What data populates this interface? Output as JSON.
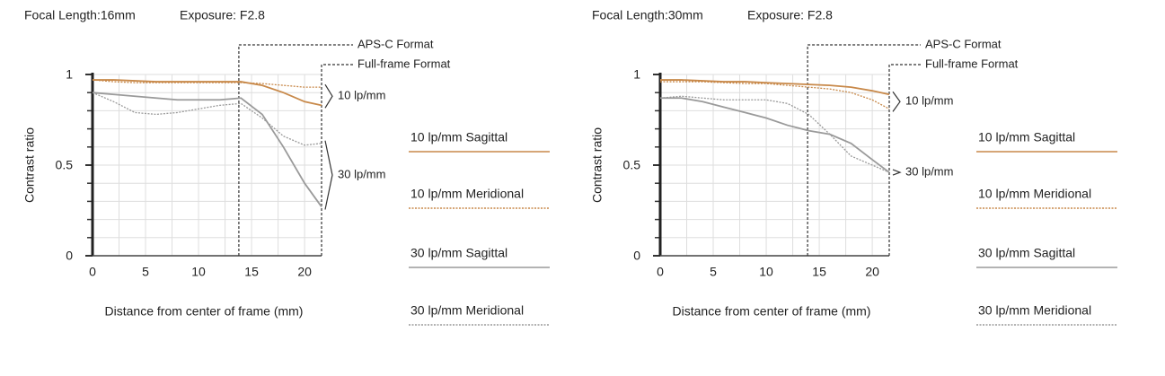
{
  "chart_data": [
    {
      "type": "line",
      "title": "Focal Length:16mm",
      "subtitle": "Exposure: F2.8",
      "x_label": "Distance from center of frame (mm)",
      "y_label": "Contrast ratio",
      "x": [
        0,
        2,
        4,
        6,
        8,
        10,
        12,
        14,
        16,
        18,
        20,
        21.6
      ],
      "xlim": [
        0,
        21.6
      ],
      "xticks": [
        0,
        5,
        10,
        15,
        20
      ],
      "xminorticks": [
        2.5,
        7.5,
        12.5,
        17.5
      ],
      "ylim": [
        0,
        1
      ],
      "yticks": [
        0,
        0.5,
        1
      ],
      "yminorticks": [
        0.1,
        0.2,
        0.3,
        0.4,
        0.6,
        0.7,
        0.8,
        0.9
      ],
      "grid": true,
      "markers": [
        {
          "label": "APS-C Format",
          "x": 13.8
        },
        {
          "label": "Full-frame Format",
          "x": 21.6
        }
      ],
      "bracket_labels": [
        "10 lp/mm",
        "30 lp/mm"
      ],
      "series": [
        {
          "name": "10 lp/mm Sagittal",
          "color": "#c8894a",
          "style": "solid",
          "values": [
            0.97,
            0.97,
            0.965,
            0.96,
            0.96,
            0.96,
            0.96,
            0.96,
            0.94,
            0.9,
            0.85,
            0.83
          ]
        },
        {
          "name": "10 lp/mm Meridional",
          "color": "#c8894a",
          "style": "dotted",
          "values": [
            0.97,
            0.96,
            0.955,
            0.955,
            0.955,
            0.955,
            0.955,
            0.955,
            0.95,
            0.94,
            0.93,
            0.93
          ]
        },
        {
          "name": "30 lp/mm Sagittal",
          "color": "#9a9a9a",
          "style": "solid",
          "values": [
            0.9,
            0.89,
            0.88,
            0.87,
            0.86,
            0.86,
            0.86,
            0.87,
            0.78,
            0.6,
            0.4,
            0.27
          ]
        },
        {
          "name": "30 lp/mm Meridional",
          "color": "#9a9a9a",
          "style": "dotted",
          "values": [
            0.9,
            0.85,
            0.79,
            0.78,
            0.79,
            0.81,
            0.83,
            0.84,
            0.76,
            0.66,
            0.61,
            0.62
          ]
        }
      ]
    },
    {
      "type": "line",
      "title": "Focal Length:30mm",
      "subtitle": "Exposure: F2.8",
      "x_label": "Distance from center of frame (mm)",
      "y_label": "Contrast ratio",
      "x": [
        0,
        2,
        4,
        6,
        8,
        10,
        12,
        14,
        16,
        18,
        20,
        21.6
      ],
      "xlim": [
        0,
        21.6
      ],
      "xticks": [
        0,
        5,
        10,
        15,
        20
      ],
      "xminorticks": [
        2.5,
        7.5,
        12.5,
        17.5
      ],
      "ylim": [
        0,
        1
      ],
      "yticks": [
        0,
        0.5,
        1
      ],
      "yminorticks": [
        0.1,
        0.2,
        0.3,
        0.4,
        0.6,
        0.7,
        0.8,
        0.9
      ],
      "grid": true,
      "markers": [
        {
          "label": "APS-C Format",
          "x": 13.9
        },
        {
          "label": "Full-frame Format",
          "x": 21.6
        }
      ],
      "bracket_labels": [
        "10 lp/mm",
        "30 lp/mm"
      ],
      "series": [
        {
          "name": "10 lp/mm Sagittal",
          "color": "#c8894a",
          "style": "solid",
          "values": [
            0.97,
            0.97,
            0.965,
            0.96,
            0.96,
            0.955,
            0.95,
            0.945,
            0.94,
            0.93,
            0.91,
            0.89
          ]
        },
        {
          "name": "10 lp/mm Meridional",
          "color": "#c8894a",
          "style": "dotted",
          "values": [
            0.96,
            0.96,
            0.96,
            0.955,
            0.95,
            0.95,
            0.94,
            0.93,
            0.92,
            0.9,
            0.86,
            0.81
          ]
        },
        {
          "name": "30 lp/mm Sagittal",
          "color": "#9a9a9a",
          "style": "solid",
          "values": [
            0.87,
            0.87,
            0.85,
            0.82,
            0.79,
            0.76,
            0.72,
            0.69,
            0.67,
            0.62,
            0.53,
            0.46
          ]
        },
        {
          "name": "30 lp/mm Meridional",
          "color": "#9a9a9a",
          "style": "dotted",
          "values": [
            0.87,
            0.88,
            0.87,
            0.86,
            0.86,
            0.86,
            0.84,
            0.78,
            0.67,
            0.55,
            0.5,
            0.46
          ]
        }
      ]
    }
  ]
}
